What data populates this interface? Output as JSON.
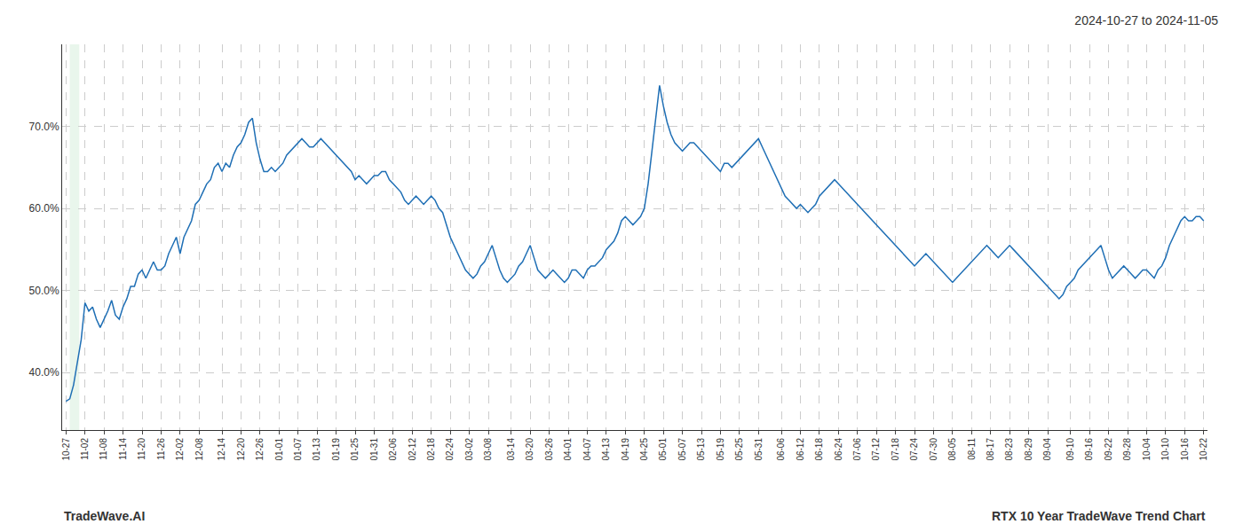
{
  "chart_data": {
    "type": "line",
    "title": "2024-10-27 to 2024-11-05",
    "annotations": [
      "TradeWave.AI",
      "RTX 10 Year TradeWave Trend Chart"
    ],
    "color": "#1f6fb5",
    "grid": true,
    "ylim": [
      33,
      80
    ],
    "yticks": [
      {
        "value": 40.0,
        "label": "40.0%"
      },
      {
        "value": 50.0,
        "label": "50.0%"
      },
      {
        "value": 60.0,
        "label": "60.0%"
      },
      {
        "value": 70.0,
        "label": "70.0%"
      }
    ],
    "band": {
      "start": 1,
      "end": 3.5,
      "color": "#d4edda"
    },
    "categories": [
      "10-27",
      null,
      null,
      null,
      null,
      "11-02",
      null,
      null,
      null,
      null,
      "11-08",
      null,
      null,
      null,
      null,
      "11-14",
      null,
      null,
      null,
      null,
      "11-20",
      null,
      null,
      null,
      null,
      "11-26",
      null,
      null,
      null,
      null,
      "12-02",
      null,
      null,
      null,
      null,
      "12-08",
      null,
      null,
      null,
      null,
      null,
      "12-14",
      null,
      null,
      null,
      null,
      "12-20",
      null,
      null,
      null,
      null,
      "12-26",
      null,
      null,
      null,
      null,
      "01-01",
      null,
      null,
      null,
      null,
      "01-07",
      null,
      null,
      null,
      null,
      "01-13",
      null,
      null,
      null,
      null,
      "01-19",
      null,
      null,
      null,
      null,
      "01-25",
      null,
      null,
      null,
      null,
      "01-31",
      null,
      null,
      null,
      null,
      "02-06",
      null,
      null,
      null,
      null,
      "02-12",
      null,
      null,
      null,
      null,
      "02-18",
      null,
      null,
      null,
      null,
      "02-24",
      null,
      null,
      null,
      null,
      "03-02",
      null,
      null,
      null,
      null,
      "03-08",
      null,
      null,
      null,
      null,
      null,
      "03-14",
      null,
      null,
      null,
      null,
      "03-20",
      null,
      null,
      null,
      null,
      "03-26",
      null,
      null,
      null,
      null,
      "04-01",
      null,
      null,
      null,
      null,
      "04-07",
      null,
      null,
      null,
      null,
      "04-13",
      null,
      null,
      null,
      null,
      "04-19",
      null,
      null,
      null,
      null,
      "04-25",
      null,
      null,
      null,
      null,
      "05-01",
      null,
      null,
      null,
      null,
      "05-07",
      null,
      null,
      null,
      null,
      "05-13",
      null,
      null,
      null,
      null,
      "05-19",
      null,
      null,
      null,
      null,
      "05-25",
      null,
      null,
      null,
      null,
      "05-31",
      null,
      null,
      null,
      null,
      null,
      "06-06",
      null,
      null,
      null,
      null,
      "06-12",
      null,
      null,
      null,
      null,
      "06-18",
      null,
      null,
      null,
      null,
      "06-24",
      null,
      null,
      null,
      null,
      "07-06",
      null,
      null,
      null,
      null,
      "07-12",
      null,
      null,
      null,
      null,
      "07-18",
      null,
      null,
      null,
      null,
      "07-24",
      null,
      null,
      null,
      null,
      "07-30",
      null,
      null,
      null,
      null,
      "08-05",
      null,
      null,
      null,
      null,
      "08-11",
      null,
      null,
      null,
      null,
      "08-17",
      null,
      null,
      null,
      null,
      "08-23",
      null,
      null,
      null,
      null,
      "08-29",
      null,
      null,
      null,
      null,
      "09-04",
      null,
      null,
      null,
      null,
      null,
      "09-10",
      null,
      null,
      null,
      null,
      "09-16",
      null,
      null,
      null,
      null,
      "09-22",
      null,
      null,
      null,
      null,
      "09-28",
      null,
      null,
      null,
      null,
      "10-04",
      null,
      null,
      null,
      null,
      "10-10",
      null,
      null,
      null,
      null,
      "10-16",
      null,
      null,
      null,
      null,
      "10-22"
    ],
    "values": [
      36.5,
      36.8,
      38.5,
      41.5,
      44.0,
      48.5,
      47.5,
      48.0,
      46.5,
      45.5,
      46.5,
      47.5,
      48.8,
      47.0,
      46.5,
      48.0,
      49.0,
      50.5,
      50.5,
      52.0,
      52.5,
      51.5,
      52.5,
      53.5,
      52.5,
      52.5,
      53.0,
      54.5,
      55.5,
      56.5,
      54.5,
      56.5,
      57.5,
      58.5,
      60.5,
      61.0,
      62.0,
      63.0,
      63.5,
      65.0,
      65.5,
      64.5,
      65.5,
      65.0,
      66.5,
      67.5,
      68.0,
      69.0,
      70.5,
      71.0,
      68.0,
      66.0,
      64.5,
      64.5,
      65.0,
      64.5,
      65.0,
      65.5,
      66.5,
      67.0,
      67.5,
      68.0,
      68.5,
      68.0,
      67.5,
      67.5,
      68.0,
      68.5,
      68.0,
      67.5,
      67.0,
      66.5,
      66.0,
      65.5,
      65.0,
      64.5,
      63.5,
      64.0,
      63.5,
      63.0,
      63.5,
      64.0,
      64.0,
      64.5,
      64.5,
      63.5,
      63.0,
      62.5,
      62.0,
      61.0,
      60.5,
      61.0,
      61.5,
      61.0,
      60.5,
      61.0,
      61.5,
      61.0,
      60.0,
      59.5,
      58.0,
      56.5,
      55.5,
      54.5,
      53.5,
      52.5,
      52.0,
      51.5,
      52.0,
      53.0,
      53.5,
      54.5,
      55.5,
      54.0,
      52.5,
      51.5,
      51.0,
      51.5,
      52.0,
      53.0,
      53.5,
      54.5,
      55.5,
      54.0,
      52.5,
      52.0,
      51.5,
      52.0,
      52.5,
      52.0,
      51.5,
      51.0,
      51.5,
      52.5,
      52.5,
      52.0,
      51.5,
      52.5,
      53.0,
      53.0,
      53.5,
      54.0,
      55.0,
      55.5,
      56.0,
      57.0,
      58.5,
      59.0,
      58.5,
      58.0,
      58.5,
      59.0,
      60.0,
      63.0,
      67.0,
      71.0,
      75.0,
      72.5,
      70.5,
      69.0,
      68.0,
      67.5,
      67.0,
      67.5,
      68.0,
      68.0,
      67.5,
      67.0,
      66.5,
      66.0,
      65.5,
      65.0,
      64.5,
      65.5,
      65.5,
      65.0,
      65.5,
      66.0,
      66.5,
      67.0,
      67.5,
      68.0,
      68.5,
      67.5,
      66.5,
      65.5,
      64.5,
      63.5,
      62.5,
      61.5,
      61.0,
      60.5,
      60.0,
      60.5,
      60.0,
      59.5,
      60.0,
      60.5,
      61.5,
      62.0,
      62.5,
      63.0,
      63.5,
      63.0,
      62.5,
      62.0,
      61.5,
      61.0,
      60.5,
      60.0,
      59.5,
      59.0,
      58.5,
      58.0,
      57.5,
      57.0,
      56.5,
      56.0,
      55.5,
      55.0,
      54.5,
      54.0,
      53.5,
      53.0,
      53.5,
      54.0,
      54.5,
      54.0,
      53.5,
      53.0,
      52.5,
      52.0,
      51.5,
      51.0,
      51.5,
      52.0,
      52.5,
      53.0,
      53.5,
      54.0,
      54.5,
      55.0,
      55.5,
      55.0,
      54.5,
      54.0,
      54.5,
      55.0,
      55.5,
      55.0,
      54.5,
      54.0,
      53.5,
      53.0,
      52.5,
      52.0,
      51.5,
      51.0,
      50.5,
      50.0,
      49.5,
      49.0,
      49.5,
      50.5,
      51.0,
      51.5,
      52.5,
      53.0,
      53.5,
      54.0,
      54.5,
      55.0,
      55.5,
      54.0,
      52.5,
      51.5,
      52.0,
      52.5,
      53.0,
      52.5,
      52.0,
      51.5,
      52.0,
      52.5,
      52.5,
      52.0,
      51.5,
      52.5,
      53.0,
      54.0,
      55.5,
      56.5,
      57.5,
      58.5,
      59.0,
      58.5,
      58.5,
      59.0,
      59.0,
      58.5
    ]
  }
}
